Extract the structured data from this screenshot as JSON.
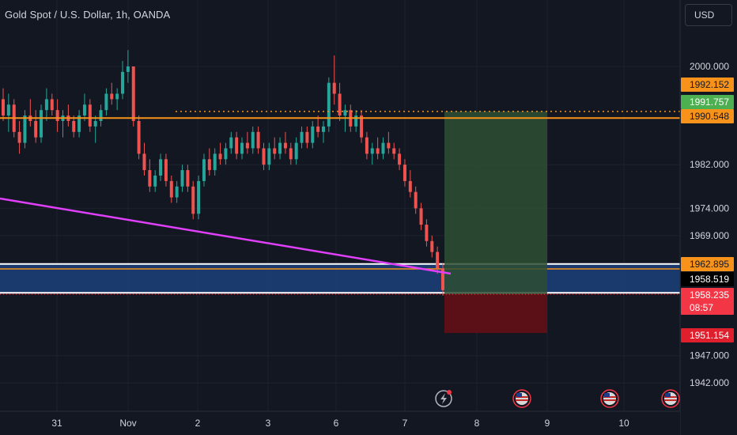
{
  "header": {
    "symbol_title": "Gold Spot / U.S. Dollar, 1h, OANDA",
    "currency": "USD"
  },
  "colors": {
    "background": "#131722",
    "up_candle": "#26a69a",
    "down_candle": "#ef5350",
    "resistance_line": "#f7931a",
    "trend_line": "#e040fb",
    "zone_fill": "#1c3f7a",
    "profit_zone": "#2e4f34",
    "loss_zone": "#5e1016",
    "current_price_label": "#f23645"
  },
  "chart_data": {
    "type": "candlestick",
    "instrument": "XAU/USD",
    "timeframe": "1h",
    "x_ticks": [
      "31",
      "Nov",
      "2",
      "3",
      "6",
      "7",
      "8",
      "9",
      "10"
    ],
    "y_ticks": [
      2000.0,
      1982.0,
      1974.0,
      1969.0,
      1947.0,
      1942.0
    ],
    "y_tick_labels": [
      "2000.000",
      "1982.000",
      "1974.000",
      "1969.000",
      "1947.000",
      "1942.000"
    ],
    "price_labels": [
      {
        "value": "1992.152",
        "style": "orange"
      },
      {
        "value": "1991.757",
        "style": "green"
      },
      {
        "value": "1990.548",
        "style": "orange"
      },
      {
        "value": "1962.895",
        "style": "orange"
      },
      {
        "value": "1958.519",
        "style": "dark"
      },
      {
        "value": "1958.235",
        "style": "current",
        "countdown": "08:57"
      },
      {
        "value": "1951.154",
        "style": "red"
      }
    ],
    "horizontal_levels": {
      "resistance": 1990.548,
      "target_dotted": 1991.757,
      "zone_top": 1963.8,
      "zone_mid": 1962.895,
      "zone_bottom": 1958.519,
      "current_price": 1958.235,
      "stop_loss": 1951.154
    },
    "candles": [
      [
        1994,
        1996,
        1990,
        1991
      ],
      [
        1991,
        1995,
        1988,
        1993
      ],
      [
        1993,
        1994,
        1987,
        1988
      ],
      [
        1988,
        1990,
        1984,
        1986
      ],
      [
        1986,
        1992,
        1985,
        1991
      ],
      [
        1991,
        1994,
        1989,
        1990
      ],
      [
        1990,
        1992,
        1986,
        1987
      ],
      [
        1987,
        1993,
        1986,
        1992
      ],
      [
        1992,
        1996,
        1990,
        1994
      ],
      [
        1994,
        1995,
        1991,
        1992
      ],
      [
        1992,
        1994,
        1988,
        1990
      ],
      [
        1990,
        1992,
        1987,
        1991
      ],
      [
        1991,
        1993,
        1989,
        1990
      ],
      [
        1990,
        1991,
        1987,
        1988
      ],
      [
        1988,
        1992,
        1987,
        1991
      ],
      [
        1991,
        1995,
        1990,
        1993
      ],
      [
        1993,
        1994,
        1988,
        1989
      ],
      [
        1989,
        1991,
        1986,
        1990
      ],
      [
        1990,
        1993,
        1989,
        1992
      ],
      [
        1992,
        1996,
        1991,
        1995
      ],
      [
        1995,
        1997,
        1993,
        1994
      ],
      [
        1994,
        1996,
        1992,
        1995
      ],
      [
        1995,
        2001,
        1994,
        1999
      ],
      [
        1999,
        2003,
        1997,
        2000
      ],
      [
        2000,
        2000,
        1989,
        1990
      ],
      [
        1990,
        1991,
        1983,
        1984
      ],
      [
        1984,
        1986,
        1980,
        1981
      ],
      [
        1981,
        1983,
        1977,
        1978
      ],
      [
        1978,
        1981,
        1977,
        1980
      ],
      [
        1980,
        1984,
        1979,
        1983
      ],
      [
        1983,
        1984,
        1978,
        1979
      ],
      [
        1979,
        1980,
        1975,
        1976
      ],
      [
        1976,
        1979,
        1975,
        1978
      ],
      [
        1978,
        1982,
        1977,
        1981
      ],
      [
        1981,
        1982,
        1977,
        1978
      ],
      [
        1978,
        1979,
        1972,
        1973
      ],
      [
        1973,
        1980,
        1972,
        1979
      ],
      [
        1979,
        1984,
        1978,
        1983
      ],
      [
        1983,
        1985,
        1980,
        1981
      ],
      [
        1981,
        1985,
        1980,
        1984
      ],
      [
        1984,
        1986,
        1982,
        1983
      ],
      [
        1983,
        1986,
        1982,
        1985
      ],
      [
        1985,
        1988,
        1984,
        1987
      ],
      [
        1987,
        1988,
        1983,
        1984
      ],
      [
        1984,
        1987,
        1983,
        1986
      ],
      [
        1986,
        1988,
        1984,
        1985
      ],
      [
        1985,
        1989,
        1984,
        1988
      ],
      [
        1988,
        1989,
        1984,
        1985
      ],
      [
        1985,
        1986,
        1981,
        1982
      ],
      [
        1982,
        1986,
        1981,
        1985
      ],
      [
        1985,
        1987,
        1983,
        1984
      ],
      [
        1984,
        1987,
        1983,
        1986
      ],
      [
        1986,
        1988,
        1984,
        1985
      ],
      [
        1985,
        1986,
        1982,
        1983
      ],
      [
        1983,
        1987,
        1982,
        1986
      ],
      [
        1986,
        1989,
        1985,
        1988
      ],
      [
        1988,
        1989,
        1985,
        1986
      ],
      [
        1986,
        1990,
        1985,
        1989
      ],
      [
        1989,
        1991,
        1987,
        1988
      ],
      [
        1988,
        1990,
        1986,
        1989
      ],
      [
        1989,
        1998,
        1988,
        1997
      ],
      [
        1997,
        2002,
        1993,
        1995
      ],
      [
        1995,
        1997,
        1990,
        1991
      ],
      [
        1991,
        1993,
        1988,
        1992
      ],
      [
        1992,
        1993,
        1988,
        1989
      ],
      [
        1989,
        1992,
        1988,
        1991
      ],
      [
        1991,
        1992,
        1986,
        1987
      ],
      [
        1987,
        1988,
        1983,
        1984
      ],
      [
        1984,
        1986,
        1982,
        1985
      ],
      [
        1985,
        1987,
        1983,
        1984
      ],
      [
        1984,
        1987,
        1983,
        1986
      ],
      [
        1986,
        1988,
        1984,
        1985
      ],
      [
        1985,
        1986,
        1983,
        1984
      ],
      [
        1984,
        1985,
        1981,
        1982
      ],
      [
        1982,
        1983,
        1978,
        1979
      ],
      [
        1979,
        1981,
        1976,
        1977
      ],
      [
        1977,
        1978,
        1973,
        1974
      ],
      [
        1974,
        1975,
        1970,
        1971
      ],
      [
        1971,
        1972,
        1967,
        1968
      ],
      [
        1968,
        1969,
        1965,
        1966
      ],
      [
        1966,
        1967,
        1962,
        1963
      ],
      [
        1963,
        1964,
        1958,
        1959
      ]
    ]
  }
}
